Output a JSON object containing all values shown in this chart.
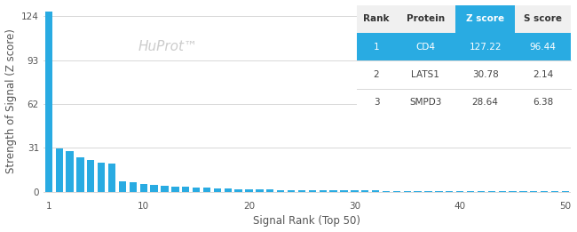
{
  "bar_color": "#29ABE2",
  "background_color": "#ffffff",
  "watermark": "HuProt™",
  "watermark_color": "#cccccc",
  "xlabel": "Signal Rank (Top 50)",
  "ylabel": "Strength of Signal (Z score)",
  "yticks": [
    0,
    31,
    62,
    93,
    124
  ],
  "xticks": [
    1,
    10,
    20,
    30,
    40,
    50
  ],
  "xlim": [
    0.5,
    50.5
  ],
  "ylim": [
    -4,
    132
  ],
  "bar_values": [
    127.22,
    30.78,
    28.64,
    24.0,
    22.5,
    20.5,
    19.8,
    7.5,
    6.5,
    5.5,
    4.8,
    4.2,
    3.8,
    3.4,
    3.0,
    2.7,
    2.4,
    2.1,
    1.9,
    1.7,
    1.5,
    1.4,
    1.3,
    1.2,
    1.1,
    1.05,
    1.0,
    0.95,
    0.9,
    0.85,
    0.8,
    0.75,
    0.7,
    0.68,
    0.65,
    0.62,
    0.6,
    0.58,
    0.56,
    0.54,
    0.52,
    0.5,
    0.48,
    0.46,
    0.44,
    0.42,
    0.4,
    0.38,
    0.36,
    0.34
  ],
  "table_header_bg_blue": "#29ABE2",
  "table_header_bg_white": "#f0f0f0",
  "table_header_color_blue": "#ffffff",
  "table_header_color_dark": "#333333",
  "table_row1_bg": "#29ABE2",
  "table_row1_color": "#ffffff",
  "table_row_bg": "#ffffff",
  "table_row_color": "#444444",
  "table_headers": [
    "Rank",
    "Protein",
    "Z score",
    "S score"
  ],
  "table_rows": [
    [
      "1",
      "CD4",
      "127.22",
      "96.44"
    ],
    [
      "2",
      "LATS1",
      "30.78",
      "2.14"
    ],
    [
      "3",
      "SMPD3",
      "28.64",
      "6.38"
    ]
  ],
  "grid_color": "#d8d8d8",
  "tick_color": "#555555",
  "font_size_axis_label": 8.5,
  "font_size_tick": 7.5,
  "font_size_table_header": 7.5,
  "font_size_table_data": 7.5
}
